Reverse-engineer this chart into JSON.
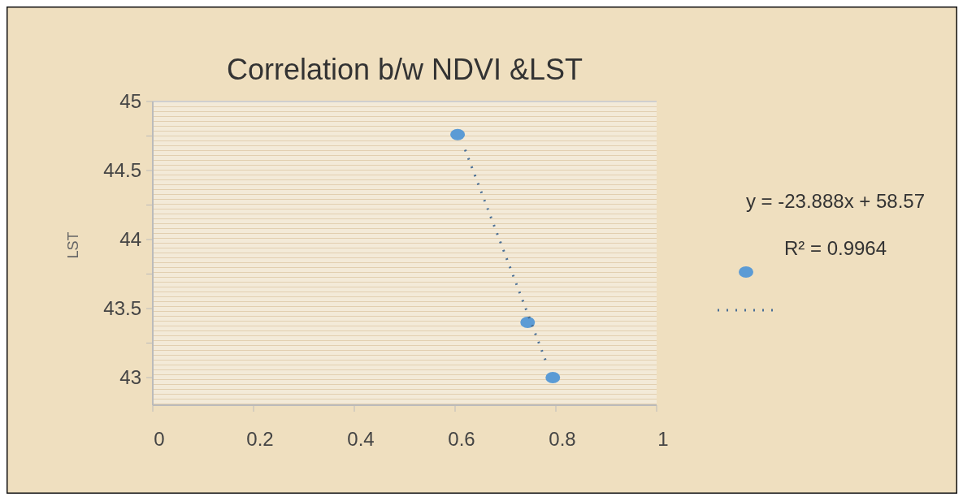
{
  "chart_data": {
    "type": "scatter",
    "title": "Correlation b/w NDVI &LST",
    "ylabel": "LST",
    "xlim": [
      0,
      1
    ],
    "xticks": [
      0,
      0.2,
      0.4,
      0.6,
      0.8,
      1
    ],
    "ylim": [
      42.8,
      45
    ],
    "yticks": [
      {
        "value": 43,
        "label": "43"
      },
      {
        "value": 43.25,
        "label": null
      },
      {
        "value": 43.5,
        "label": "43.5"
      },
      {
        "value": 43.75,
        "label": null
      },
      {
        "value": 44,
        "label": "44"
      },
      {
        "value": 44.25,
        "label": null
      },
      {
        "value": 44.5,
        "label": "44.5"
      },
      {
        "value": 44.75,
        "label": null
      },
      {
        "value": 45,
        "label": "45"
      }
    ],
    "series": [
      {
        "color": "#5b9bd5",
        "marker": "circle",
        "x": [
          0.605,
          0.744,
          0.794
        ],
        "values": [
          44.76,
          43.4,
          43.0
        ]
      },
      {
        "type": "line",
        "color": "#4a6f95",
        "line_style": "dotted",
        "marker": "none",
        "x": [
          0.62,
          0.78
        ],
        "values": [
          44.65,
          43.12
        ]
      }
    ],
    "annotations": [
      "y = -23.888x + 58.57",
      "R² = 0.9964"
    ],
    "grid": false
  }
}
